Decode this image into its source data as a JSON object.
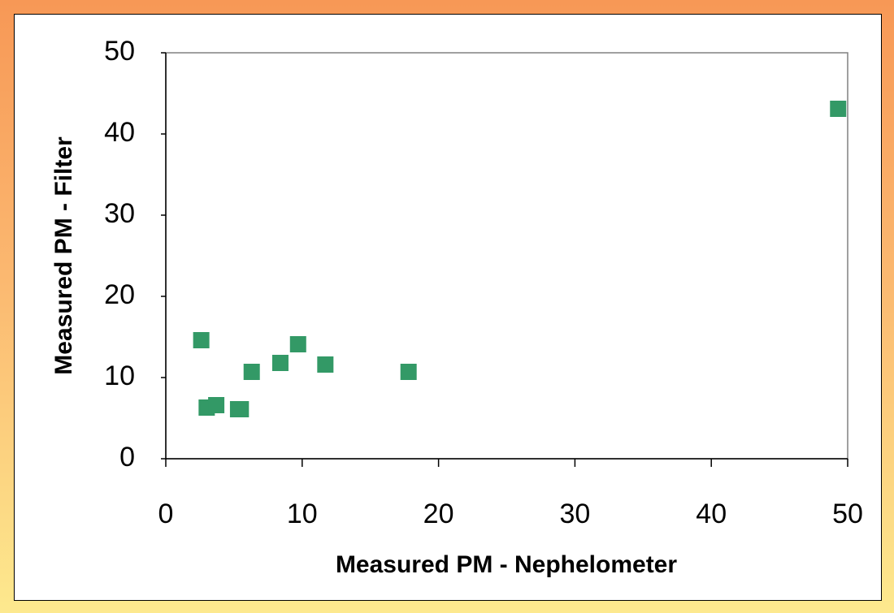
{
  "chart_data": {
    "type": "scatter",
    "x_label": "Measured PM - Nephelometer",
    "y_label": "Measured PM - Filter",
    "x": [
      2.6,
      3.0,
      3.7,
      5.3,
      5.5,
      6.3,
      8.4,
      9.7,
      11.7,
      17.8,
      49.3
    ],
    "series": [
      {
        "color": "#339966",
        "values": [
          14.6,
          6.3,
          6.6,
          6.1,
          6.1,
          10.7,
          11.8,
          14.1,
          11.6,
          10.7,
          43.1
        ]
      }
    ],
    "xlim": [
      0,
      50
    ],
    "ylim": [
      0,
      50
    ],
    "xticks": [
      0,
      10,
      20,
      30,
      40,
      50
    ],
    "yticks": [
      0,
      10,
      20,
      30,
      40,
      50
    ],
    "grid": false
  }
}
